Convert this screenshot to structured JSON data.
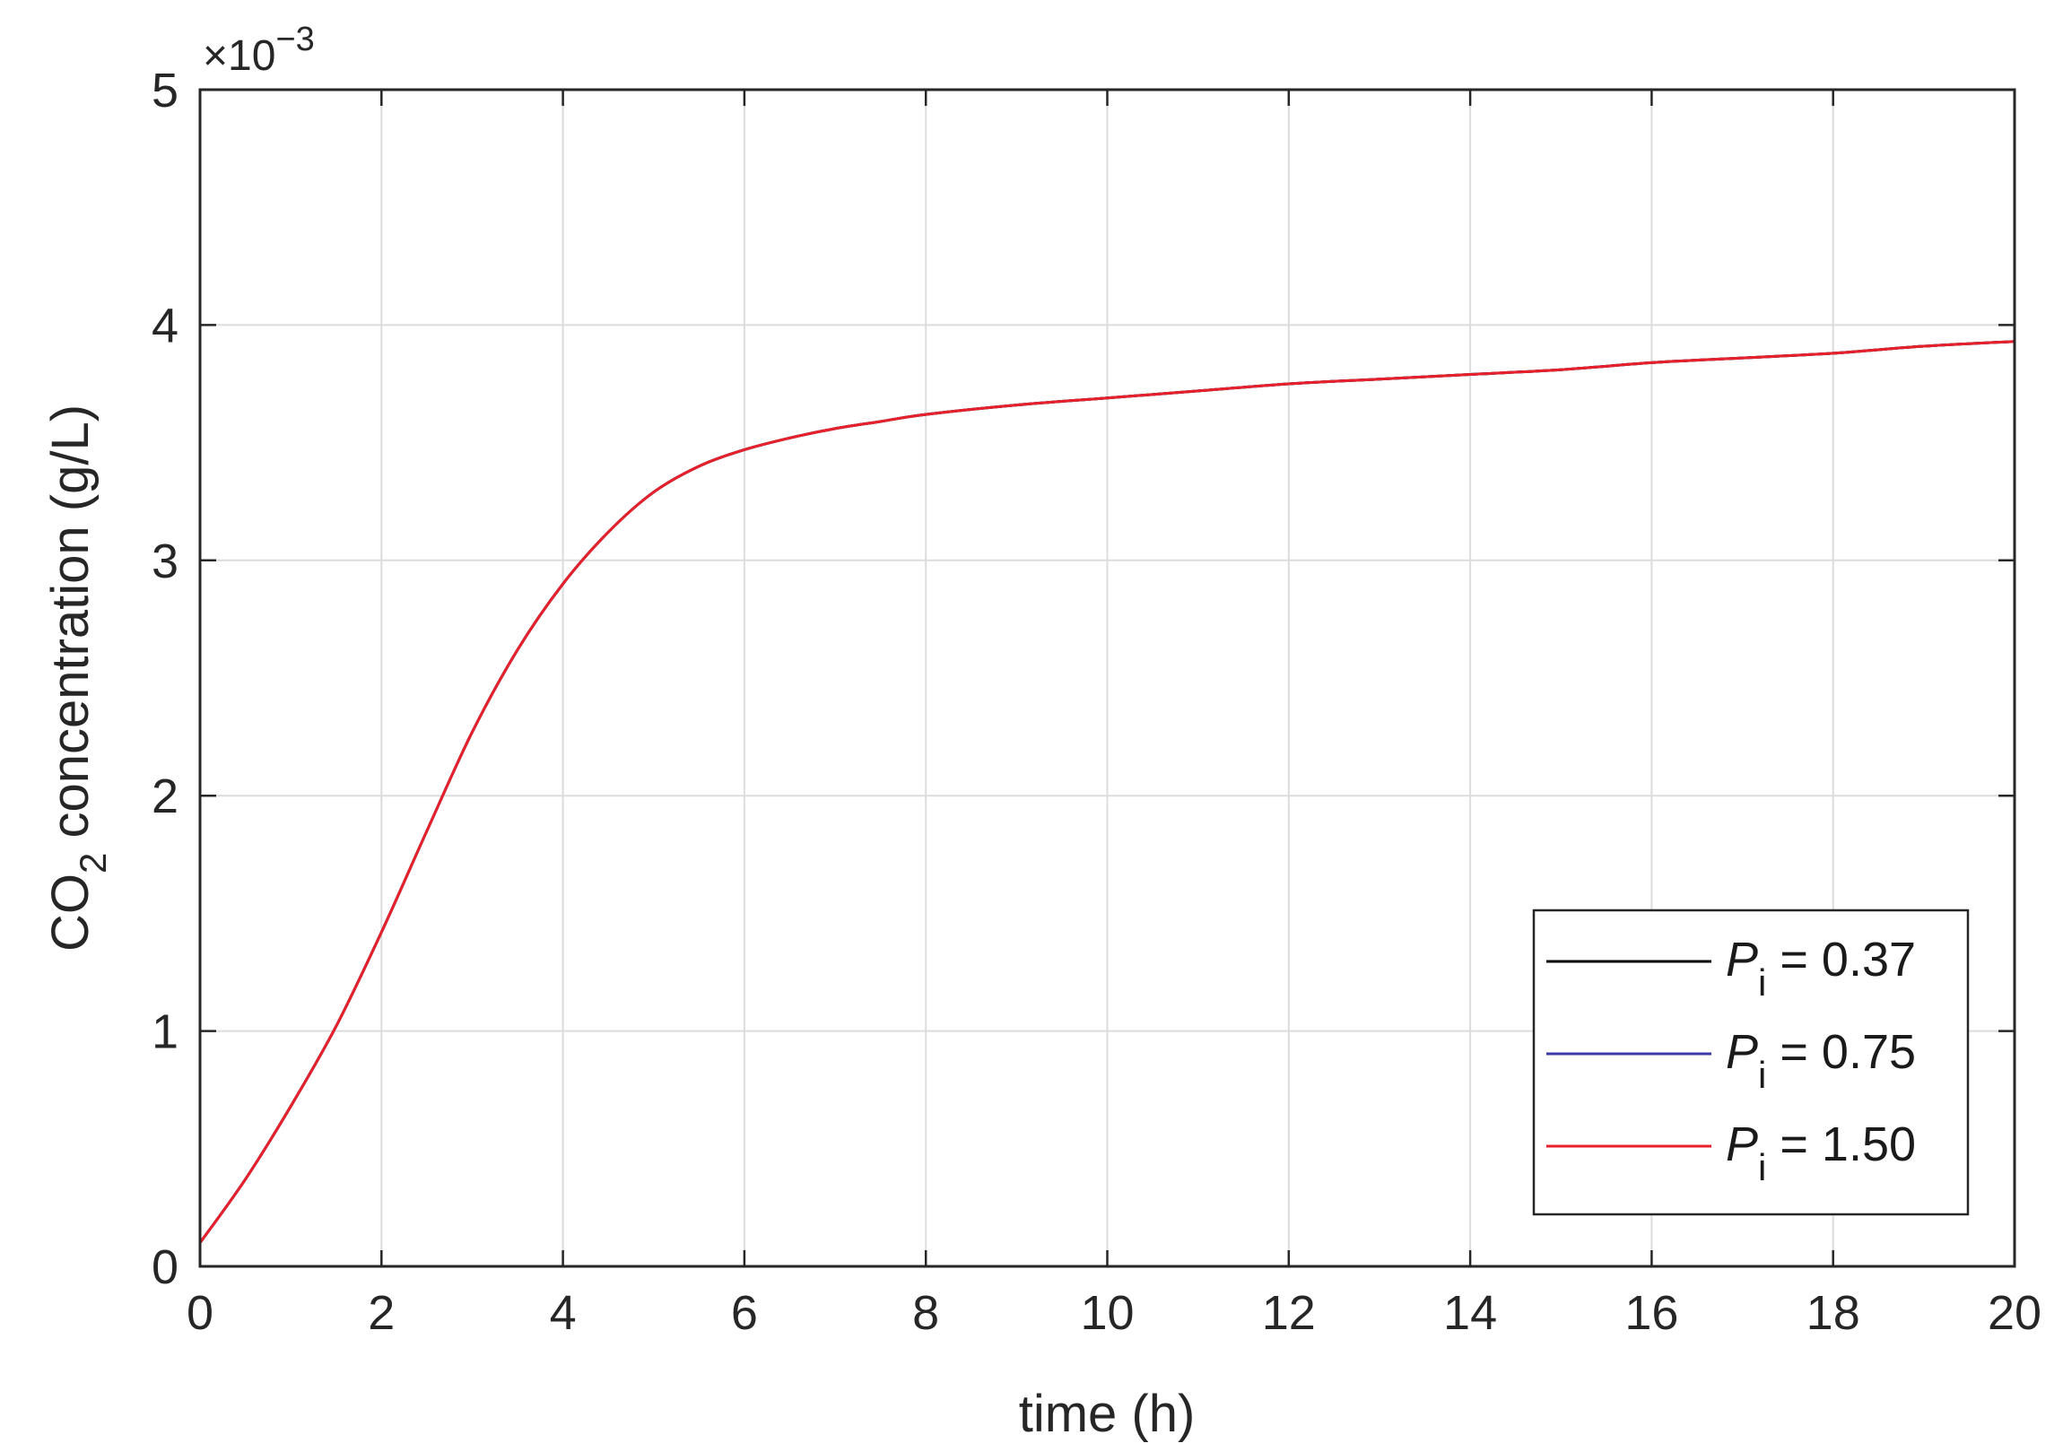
{
  "chart_data": {
    "type": "line",
    "title": "",
    "xlabel": "time (h)",
    "ylabel": {
      "prefix": "CO",
      "subscript": "2",
      "suffix": " concentration (g/L)"
    },
    "y_exponent": {
      "prefix": "×10",
      "power": "−3"
    },
    "xlim": [
      0,
      20
    ],
    "ylim": [
      0,
      5
    ],
    "xticks": [
      0,
      2,
      4,
      6,
      8,
      10,
      12,
      14,
      16,
      18,
      20
    ],
    "yticks": [
      0,
      1,
      2,
      3,
      4,
      5
    ],
    "xtick_labels": [
      "0",
      "2",
      "4",
      "6",
      "8",
      "10",
      "12",
      "14",
      "16",
      "18",
      "20"
    ],
    "ytick_labels": [
      "0",
      "1",
      "2",
      "3",
      "4",
      "5"
    ],
    "grid": true,
    "legend_position": "bottom-right",
    "x": [
      0,
      0.5,
      1,
      1.5,
      2,
      2.5,
      3,
      3.5,
      4,
      4.5,
      5,
      5.5,
      6,
      6.5,
      7,
      7.5,
      8,
      9,
      10,
      11,
      12,
      13,
      14,
      15,
      16,
      17,
      18,
      19,
      20
    ],
    "series": [
      {
        "name_var": "P",
        "name_sub": "i",
        "name_rest": " = 0.37",
        "color": "#000000",
        "values": [
          0.1,
          0.37,
          0.68,
          1.02,
          1.42,
          1.85,
          2.27,
          2.62,
          2.9,
          3.12,
          3.29,
          3.4,
          3.47,
          3.52,
          3.56,
          3.59,
          3.62,
          3.66,
          3.69,
          3.72,
          3.75,
          3.77,
          3.79,
          3.81,
          3.84,
          3.86,
          3.88,
          3.91,
          3.93
        ]
      },
      {
        "name_var": "P",
        "name_sub": "i",
        "name_rest": " = 0.75",
        "color": "#3b3ba8",
        "values": [
          0.1,
          0.37,
          0.68,
          1.02,
          1.42,
          1.85,
          2.27,
          2.62,
          2.9,
          3.12,
          3.29,
          3.4,
          3.47,
          3.52,
          3.56,
          3.59,
          3.62,
          3.66,
          3.69,
          3.72,
          3.75,
          3.77,
          3.79,
          3.81,
          3.84,
          3.86,
          3.88,
          3.91,
          3.93
        ]
      },
      {
        "name_var": "P",
        "name_sub": "i",
        "name_rest": " = 1.50",
        "color": "#e8202a",
        "values": [
          0.1,
          0.37,
          0.68,
          1.02,
          1.42,
          1.85,
          2.27,
          2.62,
          2.9,
          3.12,
          3.29,
          3.4,
          3.47,
          3.52,
          3.56,
          3.59,
          3.62,
          3.66,
          3.69,
          3.72,
          3.75,
          3.77,
          3.79,
          3.81,
          3.84,
          3.86,
          3.88,
          3.91,
          3.93
        ]
      }
    ]
  }
}
